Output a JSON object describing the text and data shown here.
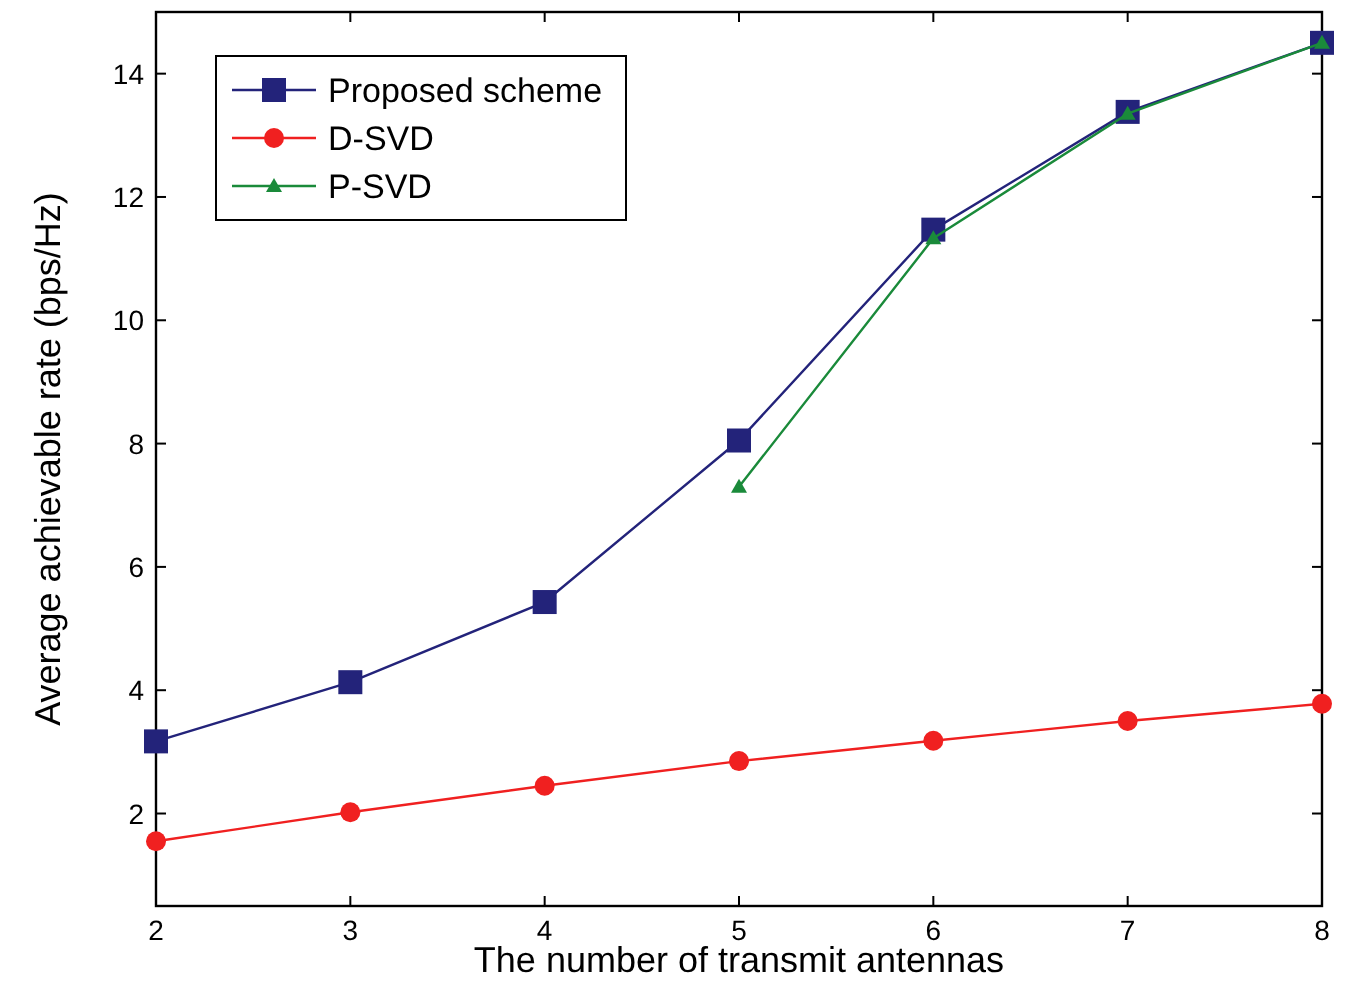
{
  "chart_data": {
    "type": "line",
    "xlabel": "The number of transmit antennas",
    "ylabel": "Average achievable rate (bps/Hz)",
    "xlim": [
      2,
      8
    ],
    "xticks": [
      2,
      3,
      4,
      5,
      6,
      7,
      8
    ],
    "ylim": [
      0.5,
      15
    ],
    "yticks": [
      2,
      4,
      6,
      8,
      10,
      12,
      14
    ],
    "grid": false,
    "legend": "top left",
    "line_style": "solid",
    "series": [
      {
        "name": "Proposed scheme",
        "color": "#23237a",
        "marker": "square",
        "x": [
          2,
          3,
          4,
          5,
          6,
          7,
          8
        ],
        "values": [
          3.17,
          4.13,
          5.43,
          8.05,
          11.47,
          13.38,
          14.5
        ]
      },
      {
        "name": "D-SVD",
        "color": "#f02020",
        "marker": "circle",
        "x": [
          2,
          3,
          4,
          5,
          6,
          7,
          8
        ],
        "values": [
          1.55,
          2.02,
          2.45,
          2.85,
          3.18,
          3.5,
          3.78
        ]
      },
      {
        "name": "P-SVD",
        "color": "#1a8a3a",
        "marker": "triangle",
        "x": [
          5,
          6,
          7,
          8
        ],
        "values": [
          7.3,
          11.33,
          13.35,
          14.5
        ]
      }
    ]
  }
}
